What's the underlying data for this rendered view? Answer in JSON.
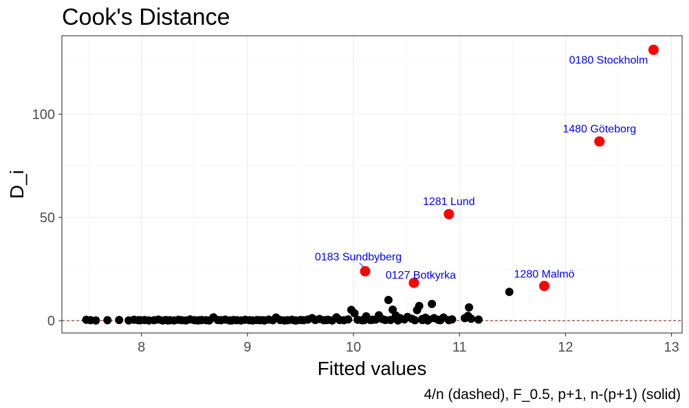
{
  "chart_data": {
    "type": "scatter",
    "title": "Cook's Distance",
    "xlabel": "Fitted values",
    "ylabel": "D_i",
    "caption": "4/n (dashed), F_0.5, p+1, n-(p+1) (solid)",
    "xlim": [
      7.25,
      13.1
    ],
    "ylim": [
      -6,
      138
    ],
    "x_ticks": [
      8,
      9,
      10,
      11,
      12,
      13
    ],
    "y_ticks": [
      0,
      50,
      100
    ],
    "grid": true,
    "dashed_line_y": 0.0015,
    "colors": {
      "points": "#000000",
      "highlight": "#ff0000",
      "annotation": "#0000ff",
      "dashed_line": "#8b0000",
      "panel_border": "#333333"
    },
    "highlighted_points": [
      {
        "label": "0180 Stockholm",
        "x": 12.83,
        "y": 131.2
      },
      {
        "label": "1480 Göteborg",
        "x": 12.32,
        "y": 86.8
      },
      {
        "label": "1281 Lund",
        "x": 10.9,
        "y": 51.6
      },
      {
        "label": "0183 Sundbyberg",
        "x": 10.11,
        "y": 23.9
      },
      {
        "label": "0127 Botkyrka",
        "x": 10.57,
        "y": 18.3
      },
      {
        "label": "1280 Malmö",
        "x": 11.8,
        "y": 16.8
      }
    ],
    "points": [
      [
        7.48,
        0.4
      ],
      [
        7.52,
        0.2
      ],
      [
        7.57,
        0.1
      ],
      [
        7.68,
        0.2
      ],
      [
        7.79,
        0.3
      ],
      [
        7.88,
        0.1
      ],
      [
        7.93,
        0.4
      ],
      [
        7.97,
        0.2
      ],
      [
        8.03,
        0.3
      ],
      [
        8.07,
        0.1
      ],
      [
        8.12,
        0.2
      ],
      [
        8.16,
        0.5
      ],
      [
        8.2,
        0.1
      ],
      [
        8.23,
        0.3
      ],
      [
        8.27,
        0.2
      ],
      [
        8.31,
        0.1
      ],
      [
        8.35,
        0.4
      ],
      [
        8.38,
        0.2
      ],
      [
        8.42,
        0.1
      ],
      [
        8.46,
        0.6
      ],
      [
        8.5,
        0.2
      ],
      [
        8.53,
        0.1
      ],
      [
        8.57,
        0.3
      ],
      [
        8.61,
        0.2
      ],
      [
        8.64,
        0.1
      ],
      [
        8.68,
        1.6
      ],
      [
        8.72,
        0.3
      ],
      [
        8.75,
        0.2
      ],
      [
        8.79,
        0.5
      ],
      [
        8.83,
        0.1
      ],
      [
        8.87,
        0.3
      ],
      [
        8.9,
        0.2
      ],
      [
        8.94,
        0.1
      ],
      [
        8.98,
        0.4
      ],
      [
        9.02,
        0.2
      ],
      [
        9.05,
        0.1
      ],
      [
        9.09,
        0.3
      ],
      [
        9.12,
        0.2
      ],
      [
        9.16,
        0.1
      ],
      [
        9.2,
        0.5
      ],
      [
        9.24,
        0.2
      ],
      [
        9.27,
        1.5
      ],
      [
        9.31,
        0.3
      ],
      [
        9.35,
        0.1
      ],
      [
        9.38,
        0.2
      ],
      [
        9.42,
        0.4
      ],
      [
        9.46,
        0.1
      ],
      [
        9.5,
        0.3
      ],
      [
        9.53,
        0.2
      ],
      [
        9.57,
        0.5
      ],
      [
        9.61,
        1.2
      ],
      [
        9.64,
        0.3
      ],
      [
        9.68,
        0.8
      ],
      [
        9.72,
        0.2
      ],
      [
        9.76,
        0.4
      ],
      [
        9.8,
        0.1
      ],
      [
        9.84,
        1.6
      ],
      [
        9.87,
        0.3
      ],
      [
        9.91,
        0.2
      ],
      [
        9.95,
        0.6
      ],
      [
        9.98,
        5.2
      ],
      [
        10.01,
        3.6
      ],
      [
        10.04,
        0.4
      ],
      [
        10.08,
        0.2
      ],
      [
        10.12,
        2.1
      ],
      [
        10.16,
        0.3
      ],
      [
        10.21,
        0.5
      ],
      [
        10.24,
        2.6
      ],
      [
        10.27,
        0.8
      ],
      [
        10.3,
        0.3
      ],
      [
        10.33,
        10.0
      ],
      [
        10.37,
        5.3
      ],
      [
        10.4,
        2.4
      ],
      [
        10.44,
        1.2
      ],
      [
        10.48,
        0.6
      ],
      [
        10.51,
        1.8
      ],
      [
        10.55,
        0.9
      ],
      [
        10.6,
        5.1
      ],
      [
        10.62,
        7.1
      ],
      [
        10.65,
        0.8
      ],
      [
        10.68,
        1.4
      ],
      [
        10.71,
        0.5
      ],
      [
        10.74,
        8.1
      ],
      [
        10.76,
        1.2
      ],
      [
        10.8,
        0.4
      ],
      [
        10.85,
        1.5
      ],
      [
        10.93,
        0.6
      ],
      [
        11.05,
        1.2
      ],
      [
        11.08,
        2.3
      ],
      [
        11.09,
        6.4
      ],
      [
        11.11,
        0.9
      ],
      [
        11.18,
        0.5
      ],
      [
        11.47,
        13.9
      ],
      [
        10.1,
        0.2
      ],
      [
        10.35,
        0.3
      ],
      [
        10.42,
        0.1
      ],
      [
        10.58,
        0.2
      ],
      [
        10.7,
        0.1
      ],
      [
        10.9,
        0.2
      ],
      [
        9.45,
        0.1
      ],
      [
        9.15,
        0.2
      ],
      [
        8.85,
        0.1
      ],
      [
        8.55,
        0.2
      ],
      [
        8.25,
        0.1
      ],
      [
        7.99,
        0.2
      ],
      [
        9.75,
        0.3
      ],
      [
        10.18,
        0.4
      ],
      [
        10.65,
        0.3
      ],
      [
        10.82,
        0.2
      ]
    ]
  }
}
